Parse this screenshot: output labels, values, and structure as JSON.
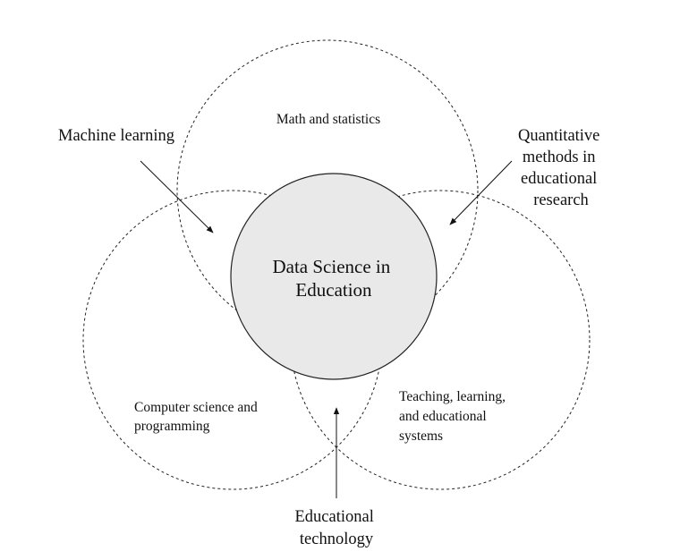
{
  "diagram": {
    "center": {
      "lines": [
        "Data Science in",
        "Education"
      ],
      "fill": "#e9e9e9"
    },
    "regions": {
      "top": {
        "lines": [
          "Math and statistics"
        ]
      },
      "left": {
        "lines": [
          "Computer science and",
          "programming"
        ]
      },
      "right": {
        "lines": [
          "Teaching, learning,",
          "and educational",
          "systems"
        ]
      }
    },
    "intersections": {
      "machine_learning": {
        "lines": [
          "Machine learning"
        ]
      },
      "quantitative_methods": {
        "lines": [
          "Quantitative",
          "methods in",
          "educational",
          "research"
        ]
      },
      "educational_technology": {
        "lines": [
          "Educational",
          "technology"
        ]
      }
    }
  }
}
